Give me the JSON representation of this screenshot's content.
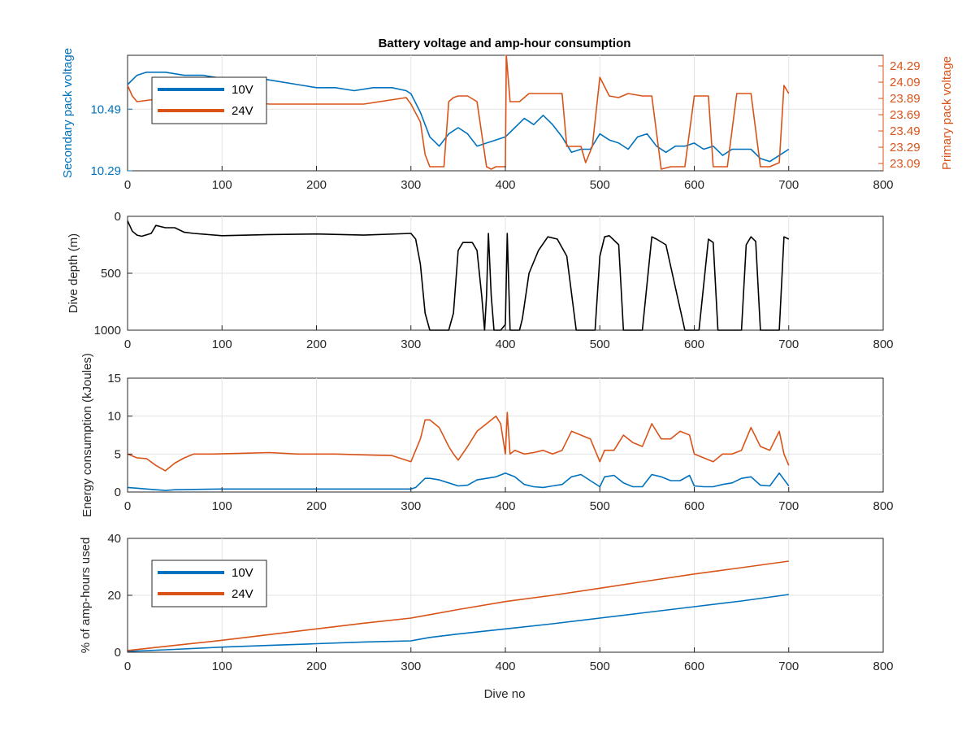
{
  "figure": {
    "title": "Battery voltage and amp-hour consumption",
    "xlabel_bottom": "Dive no"
  },
  "colors": {
    "blue": "#0072BD",
    "orange": "#D95319",
    "black": "#000000",
    "grid": "#e3e3e3",
    "axis": "#262626"
  },
  "chart_data": [
    {
      "id": "voltage",
      "type": "line",
      "title": "Battery voltage and amp-hour consumption",
      "xlabel": "",
      "ylabel_left": "Secondary pack voltage",
      "ylabel_right": "Primary pack voltage",
      "xlim": [
        0,
        800
      ],
      "xticks": [
        "0",
        "100",
        "200",
        "300",
        "400",
        "500",
        "600",
        "700",
        "800"
      ],
      "ylim_left": [
        10.29,
        10.665
      ],
      "yticks_left": [
        "10.29",
        "10.49"
      ],
      "ylim_right": [
        23.0,
        24.42
      ],
      "yticks_right": [
        "23.09",
        "23.29",
        "23.49",
        "23.69",
        "23.89",
        "24.09",
        "24.29"
      ],
      "grid": true,
      "legend": {
        "position": "top-left",
        "entries": [
          "10V",
          "24V"
        ]
      },
      "series": [
        {
          "name": "10V",
          "axis": "left",
          "color": "#0072BD",
          "x": [
            0,
            10,
            20,
            40,
            60,
            80,
            100,
            120,
            140,
            160,
            180,
            200,
            220,
            240,
            260,
            280,
            295,
            300,
            310,
            320,
            330,
            340,
            350,
            360,
            370,
            380,
            390,
            400,
            410,
            420,
            430,
            440,
            450,
            460,
            470,
            480,
            490,
            500,
            510,
            520,
            530,
            540,
            550,
            560,
            570,
            580,
            590,
            600,
            610,
            620,
            630,
            640,
            650,
            660,
            670,
            680,
            690,
            700
          ],
          "y": [
            10.57,
            10.6,
            10.61,
            10.61,
            10.6,
            10.6,
            10.59,
            10.59,
            10.59,
            10.58,
            10.57,
            10.56,
            10.56,
            10.55,
            10.56,
            10.56,
            10.55,
            10.54,
            10.48,
            10.4,
            10.37,
            10.41,
            10.43,
            10.41,
            10.37,
            10.38,
            10.39,
            10.4,
            10.43,
            10.46,
            10.44,
            10.47,
            10.44,
            10.4,
            10.35,
            10.36,
            10.36,
            10.41,
            10.39,
            10.38,
            10.36,
            10.4,
            10.41,
            10.37,
            10.35,
            10.37,
            10.37,
            10.38,
            10.36,
            10.37,
            10.34,
            10.36,
            10.36,
            10.36,
            10.33,
            10.32,
            10.34,
            10.36
          ]
        },
        {
          "name": "24V",
          "axis": "right",
          "color": "#D95319",
          "x": [
            0,
            5,
            10,
            30,
            60,
            100,
            150,
            200,
            250,
            295,
            300,
            310,
            315,
            320,
            330,
            335,
            340,
            345,
            350,
            360,
            370,
            380,
            385,
            390,
            395,
            400,
            401,
            405,
            415,
            425,
            440,
            460,
            465,
            480,
            485,
            492,
            500,
            510,
            520,
            530,
            545,
            555,
            565,
            575,
            590,
            600,
            615,
            620,
            635,
            645,
            660,
            670,
            680,
            690,
            695,
            700
          ],
          "y": [
            24.05,
            23.92,
            23.85,
            23.88,
            23.9,
            23.88,
            23.82,
            23.82,
            23.82,
            23.9,
            23.82,
            23.6,
            23.2,
            23.05,
            23.05,
            23.05,
            23.85,
            23.9,
            23.92,
            23.92,
            23.85,
            23.05,
            23.02,
            23.05,
            23.05,
            23.05,
            24.42,
            23.85,
            23.85,
            23.95,
            23.95,
            23.95,
            23.3,
            23.3,
            23.1,
            23.3,
            24.15,
            23.92,
            23.9,
            23.95,
            23.92,
            23.92,
            23.02,
            23.05,
            23.05,
            23.92,
            23.92,
            23.05,
            23.05,
            23.95,
            23.95,
            23.05,
            23.05,
            23.1,
            24.05,
            23.95
          ]
        }
      ]
    },
    {
      "id": "depth",
      "type": "line",
      "xlabel": "",
      "ylabel": "Dive depth (m)",
      "xlim": [
        0,
        800
      ],
      "xticks": [
        "0",
        "100",
        "200",
        "300",
        "400",
        "500",
        "600",
        "700",
        "800"
      ],
      "ylim": [
        0,
        1000
      ],
      "yreversed": true,
      "yticks": [
        "0",
        "500",
        "1000"
      ],
      "grid": true,
      "series": [
        {
          "name": "",
          "color": "#000000",
          "x": [
            0,
            5,
            10,
            15,
            25,
            30,
            40,
            50,
            60,
            70,
            100,
            150,
            200,
            250,
            300,
            305,
            310,
            315,
            320,
            330,
            340,
            345,
            350,
            355,
            365,
            370,
            375,
            378,
            380,
            382,
            385,
            388,
            392,
            395,
            400,
            402,
            405,
            410,
            415,
            418,
            425,
            435,
            445,
            455,
            465,
            475,
            485,
            490,
            495,
            500,
            505,
            510,
            520,
            525,
            535,
            545,
            555,
            560,
            570,
            590,
            595,
            600,
            605,
            610,
            615,
            620,
            625,
            640,
            645,
            650,
            655,
            660,
            665,
            670,
            680,
            690,
            695,
            700
          ],
          "y": [
            40,
            130,
            165,
            175,
            150,
            80,
            100,
            100,
            140,
            150,
            170,
            160,
            155,
            165,
            150,
            200,
            420,
            850,
            1000,
            1000,
            1000,
            850,
            300,
            230,
            230,
            300,
            700,
            1000,
            700,
            150,
            700,
            1000,
            1000,
            1000,
            950,
            150,
            1000,
            1000,
            1000,
            900,
            500,
            300,
            180,
            200,
            350,
            1000,
            1000,
            1000,
            1000,
            350,
            180,
            170,
            250,
            1000,
            1000,
            1000,
            180,
            200,
            250,
            1000,
            1000,
            1000,
            1000,
            600,
            200,
            230,
            1000,
            1000,
            1000,
            1000,
            250,
            180,
            220,
            1000,
            1000,
            1000,
            180,
            200
          ]
        }
      ]
    },
    {
      "id": "energy",
      "type": "line",
      "xlabel": "",
      "ylabel": "Energy consumption (kJoules)",
      "xlim": [
        0,
        800
      ],
      "xticks": [
        "0",
        "100",
        "200",
        "300",
        "400",
        "500",
        "600",
        "700",
        "800"
      ],
      "ylim": [
        0,
        15
      ],
      "yticks": [
        "0",
        "5",
        "10",
        "15"
      ],
      "grid": true,
      "series": [
        {
          "name": "",
          "color": "#D95319",
          "x": [
            0,
            10,
            20,
            30,
            40,
            50,
            60,
            70,
            90,
            120,
            150,
            180,
            200,
            220,
            250,
            280,
            300,
            305,
            310,
            315,
            320,
            330,
            340,
            345,
            350,
            360,
            370,
            380,
            390,
            395,
            400,
            402,
            405,
            410,
            420,
            430,
            440,
            450,
            460,
            470,
            480,
            490,
            500,
            505,
            515,
            525,
            535,
            545,
            555,
            565,
            575,
            585,
            595,
            600,
            610,
            620,
            630,
            640,
            650,
            660,
            670,
            680,
            690,
            695,
            700
          ],
          "y": [
            5.0,
            4.5,
            4.4,
            3.5,
            2.8,
            3.8,
            4.5,
            5.0,
            5.0,
            5.1,
            5.2,
            5.0,
            5.0,
            5.0,
            4.9,
            4.8,
            4.0,
            5.5,
            7.0,
            9.5,
            9.5,
            8.5,
            6.0,
            5.0,
            4.2,
            6.0,
            8.0,
            9.0,
            10.0,
            9.0,
            5.0,
            10.5,
            5.0,
            5.5,
            5.0,
            5.2,
            5.5,
            5.0,
            5.5,
            8.0,
            7.5,
            7.0,
            4.0,
            5.5,
            5.5,
            7.5,
            6.5,
            6.0,
            9.0,
            7.0,
            7.0,
            8.0,
            7.5,
            5.0,
            4.5,
            4.0,
            5.0,
            5.0,
            5.5,
            8.5,
            6.0,
            5.5,
            8.0,
            5.0,
            3.5
          ]
        },
        {
          "name": "",
          "color": "#0072BD",
          "x": [
            0,
            10,
            20,
            30,
            40,
            50,
            100,
            150,
            200,
            250,
            300,
            305,
            310,
            315,
            320,
            330,
            340,
            350,
            360,
            370,
            380,
            390,
            400,
            410,
            420,
            430,
            440,
            450,
            460,
            470,
            480,
            490,
            500,
            505,
            515,
            525,
            535,
            545,
            555,
            565,
            575,
            585,
            595,
            600,
            610,
            620,
            630,
            640,
            650,
            660,
            670,
            680,
            690,
            700
          ],
          "y": [
            0.6,
            0.5,
            0.4,
            0.3,
            0.2,
            0.3,
            0.4,
            0.4,
            0.4,
            0.4,
            0.4,
            0.6,
            1.2,
            1.8,
            1.8,
            1.6,
            1.2,
            0.8,
            0.9,
            1.6,
            1.8,
            2.0,
            2.5,
            2.0,
            1.0,
            0.7,
            0.6,
            0.8,
            1.0,
            2.0,
            2.3,
            1.5,
            0.7,
            2.0,
            2.2,
            1.2,
            0.7,
            0.7,
            2.3,
            2.0,
            1.5,
            1.5,
            2.2,
            0.8,
            0.7,
            0.7,
            1.0,
            1.2,
            1.8,
            2.0,
            0.9,
            0.8,
            2.5,
            0.8
          ]
        }
      ]
    },
    {
      "id": "amphours",
      "type": "line",
      "xlabel": "Dive no",
      "ylabel": "% of amp-hours used",
      "xlim": [
        0,
        800
      ],
      "xticks": [
        "0",
        "100",
        "200",
        "300",
        "400",
        "500",
        "600",
        "700",
        "800"
      ],
      "ylim": [
        0,
        40
      ],
      "yticks": [
        "0",
        "20",
        "40"
      ],
      "grid": true,
      "legend": {
        "position": "top-left",
        "entries": [
          "10V",
          "24V"
        ]
      },
      "series": [
        {
          "name": "10V",
          "color": "#0072BD",
          "x": [
            0,
            50,
            100,
            150,
            200,
            250,
            300,
            320,
            350,
            400,
            450,
            500,
            550,
            600,
            650,
            700
          ],
          "y": [
            0.3,
            1.0,
            1.8,
            2.4,
            3.0,
            3.6,
            4.0,
            5.2,
            6.4,
            8.2,
            10.0,
            12.0,
            14.0,
            16.0,
            18.0,
            20.3
          ]
        },
        {
          "name": "24V",
          "color": "#D95319",
          "x": [
            0,
            50,
            100,
            150,
            200,
            250,
            300,
            320,
            350,
            400,
            450,
            500,
            550,
            600,
            650,
            700
          ],
          "y": [
            0.6,
            2.4,
            4.2,
            6.2,
            8.2,
            10.2,
            12.0,
            13.2,
            15.0,
            17.8,
            20.0,
            22.5,
            25.0,
            27.5,
            29.7,
            32.0
          ]
        }
      ]
    }
  ]
}
